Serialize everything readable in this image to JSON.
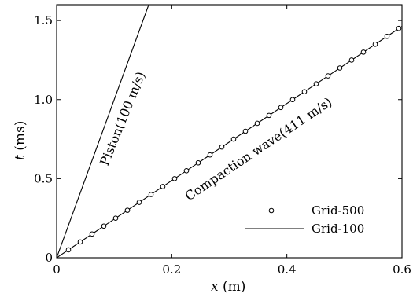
{
  "chart_data": {
    "type": "line",
    "xlabel_var": "x",
    "xlabel_unit": "(m)",
    "ylabel_var": "t",
    "ylabel_unit": "(ms)",
    "xlim": [
      0,
      0.6
    ],
    "ylim": [
      0,
      1.6
    ],
    "xticks": [
      0,
      0.2,
      0.4,
      0.6
    ],
    "xtick_labels": [
      "0",
      "0.2",
      "0.4",
      "0.6"
    ],
    "yticks": [
      0,
      0.5,
      1.0,
      1.5
    ],
    "ytick_labels": [
      "0",
      "0.5",
      "1.0",
      "1.5"
    ],
    "grid": false,
    "legend_position": "lower-right",
    "series": [
      {
        "name": "Grid-500",
        "style": "markers",
        "marker": "open-circle",
        "x": [
          0.0205,
          0.041,
          0.0615,
          0.082,
          0.1025,
          0.123,
          0.1435,
          0.164,
          0.1845,
          0.205,
          0.2255,
          0.246,
          0.2665,
          0.287,
          0.3075,
          0.328,
          0.3485,
          0.369,
          0.3895,
          0.41,
          0.4305,
          0.451,
          0.4715,
          0.492,
          0.5125,
          0.533,
          0.5535,
          0.574,
          0.5945
        ],
        "y": [
          0.05,
          0.1,
          0.15,
          0.2,
          0.25,
          0.3,
          0.35,
          0.4,
          0.45,
          0.5,
          0.55,
          0.6,
          0.65,
          0.7,
          0.75,
          0.8,
          0.85,
          0.9,
          0.95,
          1.0,
          1.05,
          1.1,
          1.15,
          1.2,
          1.25,
          1.3,
          1.35,
          1.4,
          1.45
        ]
      },
      {
        "name": "Grid-100",
        "style": "line",
        "x": [
          0,
          0.6
        ],
        "y": [
          0,
          1.463
        ]
      }
    ],
    "piston_line": {
      "x": [
        0,
        0.16
      ],
      "y": [
        0,
        1.6
      ]
    },
    "annotations": {
      "piston": "Piston(100 m/s)",
      "compaction": "Compaction wave(411 m/s)"
    }
  }
}
